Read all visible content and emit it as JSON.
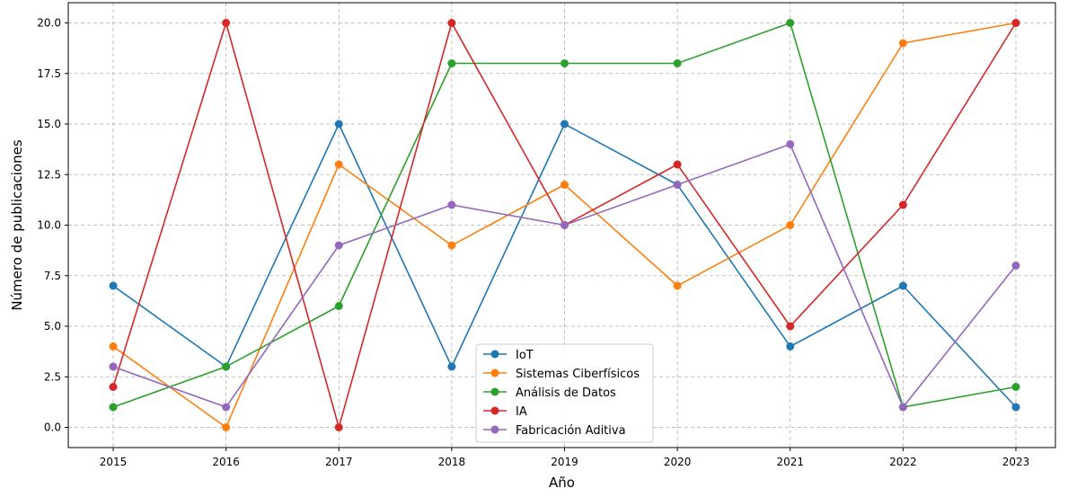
{
  "chart_data": {
    "type": "line",
    "title": "",
    "xlabel": "Año",
    "ylabel": "Número de publicaciones",
    "categories": [
      "2015",
      "2016",
      "2017",
      "2018",
      "2019",
      "2020",
      "2021",
      "2022",
      "2023"
    ],
    "ylim": [
      -1,
      21
    ],
    "yticks": [
      "0.0",
      "2.5",
      "5.0",
      "7.5",
      "10.0",
      "12.5",
      "15.0",
      "17.5",
      "20.0"
    ],
    "grid": true,
    "legend_position": "lower-center",
    "series": [
      {
        "name": "IoT",
        "color": "#1f77b4",
        "values": [
          7,
          3,
          15,
          3,
          15,
          12,
          4,
          7,
          1
        ]
      },
      {
        "name": "Sistemas Ciberfísicos",
        "color": "#ff7f0e",
        "values": [
          4,
          0,
          13,
          9,
          12,
          7,
          10,
          19,
          20
        ]
      },
      {
        "name": "Análisis de Datos",
        "color": "#2ca02c",
        "values": [
          1,
          3,
          6,
          18,
          18,
          18,
          20,
          1,
          2
        ]
      },
      {
        "name": "IA",
        "color": "#d62728",
        "values": [
          2,
          20,
          0,
          20,
          10,
          13,
          5,
          11,
          20
        ]
      },
      {
        "name": "Fabricación Aditiva",
        "color": "#9467bd",
        "values": [
          3,
          1,
          9,
          11,
          10,
          12,
          14,
          1,
          8
        ]
      }
    ]
  }
}
